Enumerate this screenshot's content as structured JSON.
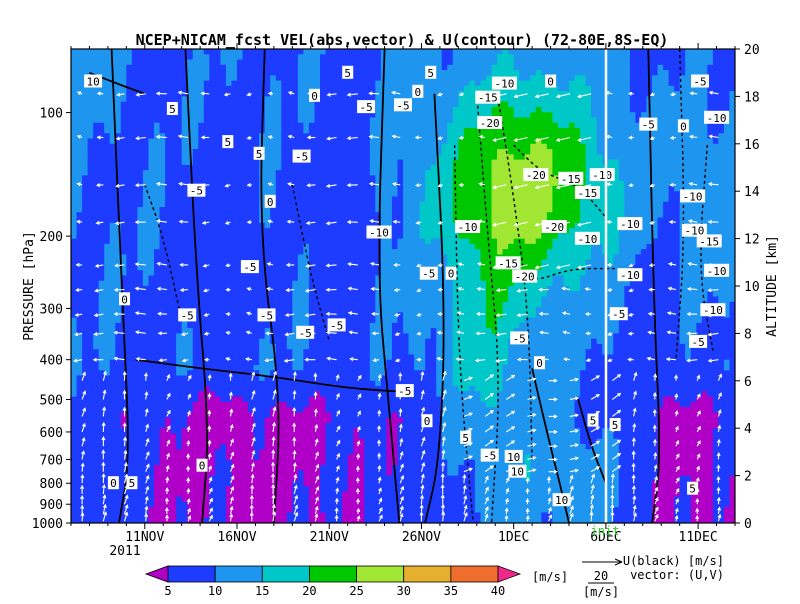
{
  "chart_data": {
    "type": "heatmap",
    "title": "NCEP+NICAM_fcst VEL(abs,vector) & U(contour)  (72-80E,8S-EQ)",
    "ylabel_left": "PRESSURE [hPa]",
    "ylabel_right": "ALTITUDE [km]",
    "x_tick_labels": [
      "11NOV",
      "16NOV",
      "21NOV",
      "26NOV",
      "1DEC",
      "6DEC",
      "11DEC"
    ],
    "x_tick_days": [
      11,
      16,
      21,
      26,
      31,
      36,
      41
    ],
    "year_label": "2011",
    "x_range_days": [
      7,
      43
    ],
    "init_label": "init",
    "init_day": 37.2,
    "pressure_ticks": [
      100,
      200,
      300,
      400,
      500,
      600,
      700,
      800,
      900,
      1000
    ],
    "pressure_range": [
      70,
      1000
    ],
    "altitude_ticks": [
      0,
      2,
      4,
      6,
      8,
      10,
      12,
      14,
      16,
      18,
      20
    ],
    "altitude_range": [
      0,
      20
    ],
    "colorbar": {
      "levels": [
        5,
        10,
        15,
        20,
        25,
        30,
        35,
        40
      ],
      "unit": "[m/s]",
      "colors": [
        "#b000c8",
        "#1e3cff",
        "#1e96f0",
        "#00c8c8",
        "#00c800",
        "#a0e632",
        "#e6af2d",
        "#f06e2d",
        "#f0288c"
      ]
    },
    "vector_reference": {
      "value": "20",
      "unit": "[m/s]"
    },
    "legend_line1": "U(black) [m/s]",
    "legend_line2": "vector: (U,V)",
    "contour_labels": [
      {
        "text": "5",
        "day": 12.5,
        "p": 98
      },
      {
        "text": "5",
        "day": 15.5,
        "p": 118
      },
      {
        "text": "5",
        "day": 17.2,
        "p": 126
      },
      {
        "text": "0",
        "day": 17.8,
        "p": 165
      },
      {
        "text": "-5",
        "day": 13.8,
        "p": 155
      },
      {
        "text": "-5",
        "day": 19.5,
        "p": 128
      },
      {
        "text": "0",
        "day": 20.2,
        "p": 91
      },
      {
        "text": "-5",
        "day": 23.0,
        "p": 97
      },
      {
        "text": "-5",
        "day": 25.0,
        "p": 96
      },
      {
        "text": "0",
        "day": 25.8,
        "p": 89
      },
      {
        "text": "5",
        "day": 22.0,
        "p": 80
      },
      {
        "text": "5",
        "day": 26.5,
        "p": 80
      },
      {
        "text": "-10",
        "day": 30.5,
        "p": 85
      },
      {
        "text": "-15",
        "day": 29.6,
        "p": 92
      },
      {
        "text": "-20",
        "day": 29.7,
        "p": 106
      },
      {
        "text": "0",
        "day": 33.0,
        "p": 84
      },
      {
        "text": "-20",
        "day": 32.2,
        "p": 142
      },
      {
        "text": "-15",
        "day": 34.1,
        "p": 145
      },
      {
        "text": "-15",
        "day": 35.0,
        "p": 157
      },
      {
        "text": "-10",
        "day": 35.8,
        "p": 142
      },
      {
        "text": "-5",
        "day": 38.3,
        "p": 107
      },
      {
        "text": "-10",
        "day": 28.5,
        "p": 190
      },
      {
        "text": "-20",
        "day": 33.2,
        "p": 190
      },
      {
        "text": "-10",
        "day": 35.0,
        "p": 203
      },
      {
        "text": "-10",
        "day": 37.3,
        "p": 187
      },
      {
        "text": "-10",
        "day": 23.7,
        "p": 196
      },
      {
        "text": "-15",
        "day": 30.7,
        "p": 233
      },
      {
        "text": "-20",
        "day": 31.6,
        "p": 251
      },
      {
        "text": "-10",
        "day": 37.3,
        "p": 249
      },
      {
        "text": "-5",
        "day": 16.7,
        "p": 238
      },
      {
        "text": "-5",
        "day": 26.4,
        "p": 247
      },
      {
        "text": "0",
        "day": 27.6,
        "p": 247
      },
      {
        "text": "-5",
        "day": 13.3,
        "p": 312
      },
      {
        "text": "-5",
        "day": 17.6,
        "p": 312
      },
      {
        "text": "-5",
        "day": 21.4,
        "p": 330
      },
      {
        "text": "-5",
        "day": 19.7,
        "p": 344
      },
      {
        "text": "-5",
        "day": 36.7,
        "p": 310
      },
      {
        "text": "-5",
        "day": 31.3,
        "p": 355
      },
      {
        "text": "0",
        "day": 9.9,
        "p": 285
      },
      {
        "text": "0",
        "day": 32.4,
        "p": 408
      },
      {
        "text": "-5",
        "day": 25.1,
        "p": 477
      },
      {
        "text": "0",
        "day": 26.3,
        "p": 565
      },
      {
        "text": "5",
        "day": 28.4,
        "p": 620
      },
      {
        "text": "-5",
        "day": 29.7,
        "p": 685
      },
      {
        "text": "5",
        "day": 35.3,
        "p": 563
      },
      {
        "text": "5",
        "day": 36.5,
        "p": 577
      },
      {
        "text": "10",
        "day": 31.0,
        "p": 690
      },
      {
        "text": "10",
        "day": 31.2,
        "p": 750
      },
      {
        "text": "10",
        "day": 33.6,
        "p": 880
      },
      {
        "text": "0",
        "day": 9.3,
        "p": 800
      },
      {
        "text": "5",
        "day": 10.3,
        "p": 800
      },
      {
        "text": "0",
        "day": 14.1,
        "p": 725
      },
      {
        "text": "-10",
        "day": 42.0,
        "p": 103
      },
      {
        "text": "0",
        "day": 40.2,
        "p": 108
      },
      {
        "text": "-5",
        "day": 41.1,
        "p": 84
      },
      {
        "text": "-10",
        "day": 40.7,
        "p": 160
      },
      {
        "text": "-10",
        "day": 40.8,
        "p": 194
      },
      {
        "text": "-15",
        "day": 41.6,
        "p": 206
      },
      {
        "text": "-10",
        "day": 42.0,
        "p": 243
      },
      {
        "text": "-10",
        "day": 41.8,
        "p": 303
      },
      {
        "text": "-5",
        "day": 41.0,
        "p": 362
      },
      {
        "text": "5",
        "day": 40.7,
        "p": 825
      },
      {
        "text": "10",
        "day": 8.2,
        "p": 84
      }
    ]
  }
}
